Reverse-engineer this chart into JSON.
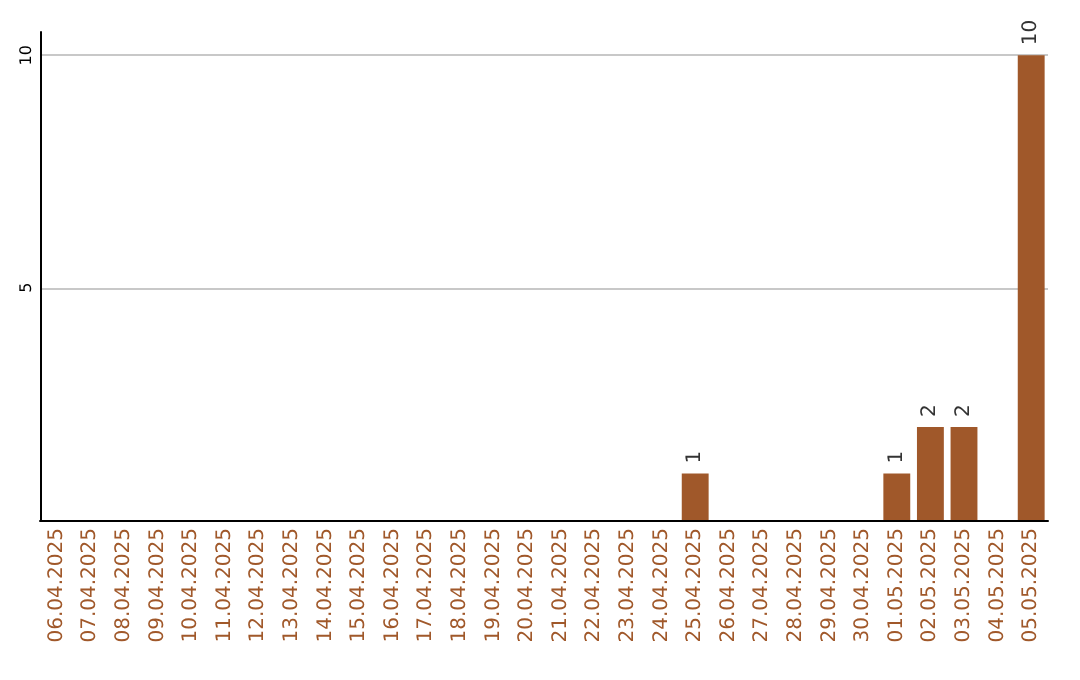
{
  "chart_data": {
    "type": "bar",
    "categories": [
      "06.04.2025",
      "07.04.2025",
      "08.04.2025",
      "09.04.2025",
      "10.04.2025",
      "11.04.2025",
      "12.04.2025",
      "13.04.2025",
      "14.04.2025",
      "15.04.2025",
      "16.04.2025",
      "17.04.2025",
      "18.04.2025",
      "19.04.2025",
      "20.04.2025",
      "21.04.2025",
      "22.04.2025",
      "23.04.2025",
      "24.04.2025",
      "25.04.2025",
      "26.04.2025",
      "27.04.2025",
      "28.04.2025",
      "29.04.2025",
      "30.04.2025",
      "01.05.2025",
      "02.05.2025",
      "03.05.2025",
      "04.05.2025",
      "05.05.2025"
    ],
    "values": [
      0,
      0,
      0,
      0,
      0,
      0,
      0,
      0,
      0,
      0,
      0,
      0,
      0,
      0,
      0,
      0,
      0,
      0,
      0,
      1,
      0,
      0,
      0,
      0,
      0,
      1,
      2,
      2,
      0,
      10
    ],
    "value_labels": [
      null,
      null,
      null,
      null,
      null,
      null,
      null,
      null,
      null,
      null,
      null,
      null,
      null,
      null,
      null,
      null,
      null,
      null,
      null,
      "1",
      null,
      null,
      null,
      null,
      null,
      "1",
      "2",
      "2",
      null,
      "10"
    ],
    "color": "#a0582a",
    "ylim": [
      0,
      10.5
    ],
    "yticks": [
      5,
      10
    ],
    "grid": "y"
  }
}
